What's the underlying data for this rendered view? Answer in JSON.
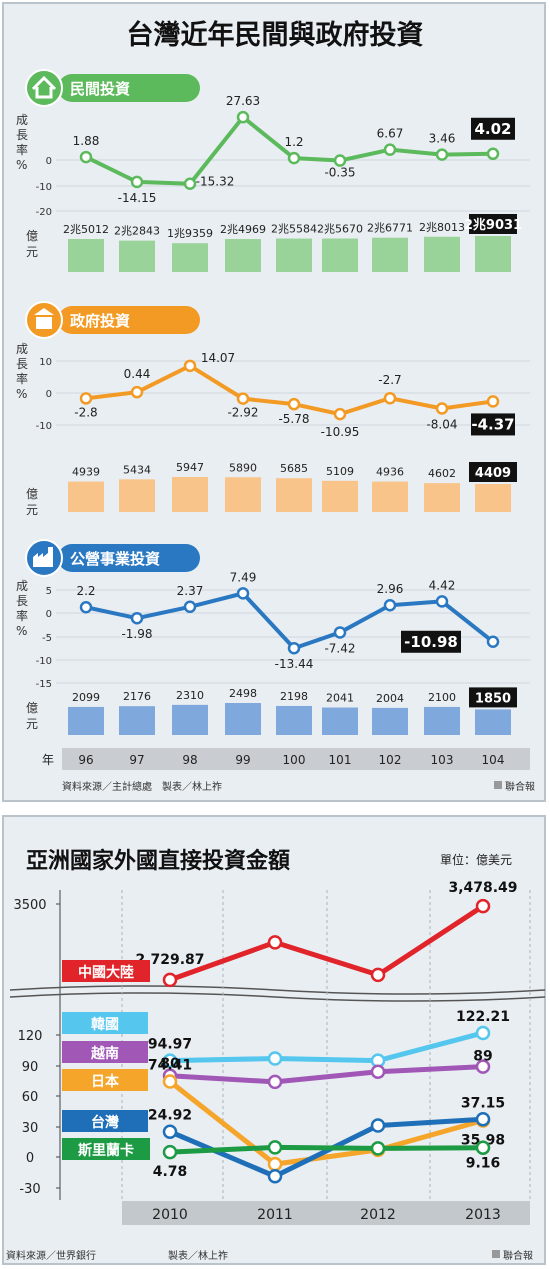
{
  "chart_data": [
    {
      "type": "line",
      "title": "台灣近年民間與政府投資",
      "x_label": "年",
      "categories": [
        "96",
        "97",
        "98",
        "99",
        "100",
        "101",
        "102",
        "103",
        "104"
      ],
      "source": "資料來源／主計總處　製表／林上祚",
      "credit": "聯合報",
      "panels": [
        {
          "name": "民間投資",
          "color": "#5cba5c",
          "bar_color": "#9ad39a",
          "growth_label": "成長率%",
          "growth_ticks": [
            "0",
            "-10",
            "-20"
          ],
          "growth": [
            1.88,
            -14.15,
            -15.32,
            27.63,
            1.2,
            -0.35,
            6.67,
            3.46,
            4.02
          ],
          "growth_labels": [
            "1.88",
            "-14.15",
            "-15.32",
            "27.63",
            "1.2",
            "-0.35",
            "6.67",
            "3.46",
            "4.02"
          ],
          "amount_label": "億元",
          "amounts": [
            25012,
            22843,
            19359,
            24969,
            25584,
            25670,
            26771,
            28013,
            29031
          ],
          "amount_labels": [
            "2兆5012",
            "2兆2843",
            "1兆9359",
            "2兆4969",
            "2兆5584",
            "2兆5670",
            "2兆6771",
            "2兆8013",
            "2兆9031"
          ]
        },
        {
          "name": "政府投資",
          "color": "#f39a24",
          "bar_color": "#f9c48a",
          "growth_label": "成長率%",
          "growth_ticks": [
            "10",
            "0",
            "-10"
          ],
          "growth": [
            -2.8,
            0.44,
            14.07,
            -2.92,
            -5.78,
            -10.95,
            -2.7,
            -8.04,
            -4.37
          ],
          "growth_labels": [
            "-2.8",
            "0.44",
            "14.07",
            "-2.92",
            "-5.78",
            "-10.95",
            "-2.7",
            "-8.04",
            "-4.37"
          ],
          "amount_label": "億元",
          "amounts": [
            4939,
            5434,
            5947,
            5890,
            5685,
            5109,
            4936,
            4602,
            4409
          ],
          "amount_labels": [
            "4939",
            "5434",
            "5947",
            "5890",
            "5685",
            "5109",
            "4936",
            "4602",
            "4409"
          ]
        },
        {
          "name": "公營事業投資",
          "color": "#2a78c2",
          "bar_color": "#7fa9dc",
          "growth_label": "成長率%",
          "growth_ticks": [
            "5",
            "0",
            "-5",
            "-10",
            "-15"
          ],
          "growth": [
            2.2,
            -1.98,
            2.37,
            7.49,
            -13.44,
            -7.42,
            2.96,
            4.42,
            -10.98
          ],
          "growth_labels": [
            "2.2",
            "-1.98",
            "2.37",
            "7.49",
            "-13.44",
            "-7.42",
            "2.96",
            "4.42",
            "-10.98"
          ],
          "amount_label": "億元",
          "amounts": [
            2099,
            2176,
            2310,
            2498,
            2198,
            2041,
            2004,
            2100,
            1850
          ],
          "amount_labels": [
            "2099",
            "2176",
            "2310",
            "2498",
            "2198",
            "2041",
            "2004",
            "2100",
            "1850"
          ]
        }
      ]
    },
    {
      "type": "line",
      "title": "亞洲國家外國直接投資金額",
      "unit": "單位：億美元",
      "x": [
        "2010",
        "2011",
        "2012",
        "2013"
      ],
      "y_ticks": [
        "3500",
        "120",
        "90",
        "60",
        "30",
        "0",
        "-30"
      ],
      "axis_break": true,
      "series": [
        {
          "name": "中國大陸",
          "color": "#e0242a",
          "values": [
            2729.87,
            3110,
            2780,
            3478.49
          ],
          "labels": [
            "2,729.87",
            "",
            "",
            "3,478.49"
          ]
        },
        {
          "name": "韓國",
          "color": "#55c6ee",
          "values": [
            94.97,
            97,
            95,
            122.21
          ],
          "labels": [
            "94.97",
            "",
            "",
            "122.21"
          ]
        },
        {
          "name": "越南",
          "color": "#a157b6",
          "values": [
            80,
            74,
            84,
            89
          ],
          "labels": [
            "80",
            "",
            "",
            "89"
          ]
        },
        {
          "name": "日本",
          "color": "#f4a52a",
          "values": [
            74.41,
            -7,
            7,
            35.98
          ],
          "labels": [
            "74.41",
            "",
            "",
            "35.98"
          ]
        },
        {
          "name": "台灣",
          "color": "#1e6fb8",
          "values": [
            24.92,
            -19,
            31,
            37.15
          ],
          "labels": [
            "24.92",
            "",
            "",
            "37.15"
          ]
        },
        {
          "name": "斯里蘭卡",
          "color": "#1d9a44",
          "values": [
            4.78,
            9.5,
            8.5,
            9.16
          ],
          "labels": [
            "4.78",
            "",
            "",
            "9.16"
          ]
        }
      ],
      "source": "資料來源／世界銀行",
      "maker": "製表／林上祚",
      "credit": "聯合報"
    }
  ]
}
